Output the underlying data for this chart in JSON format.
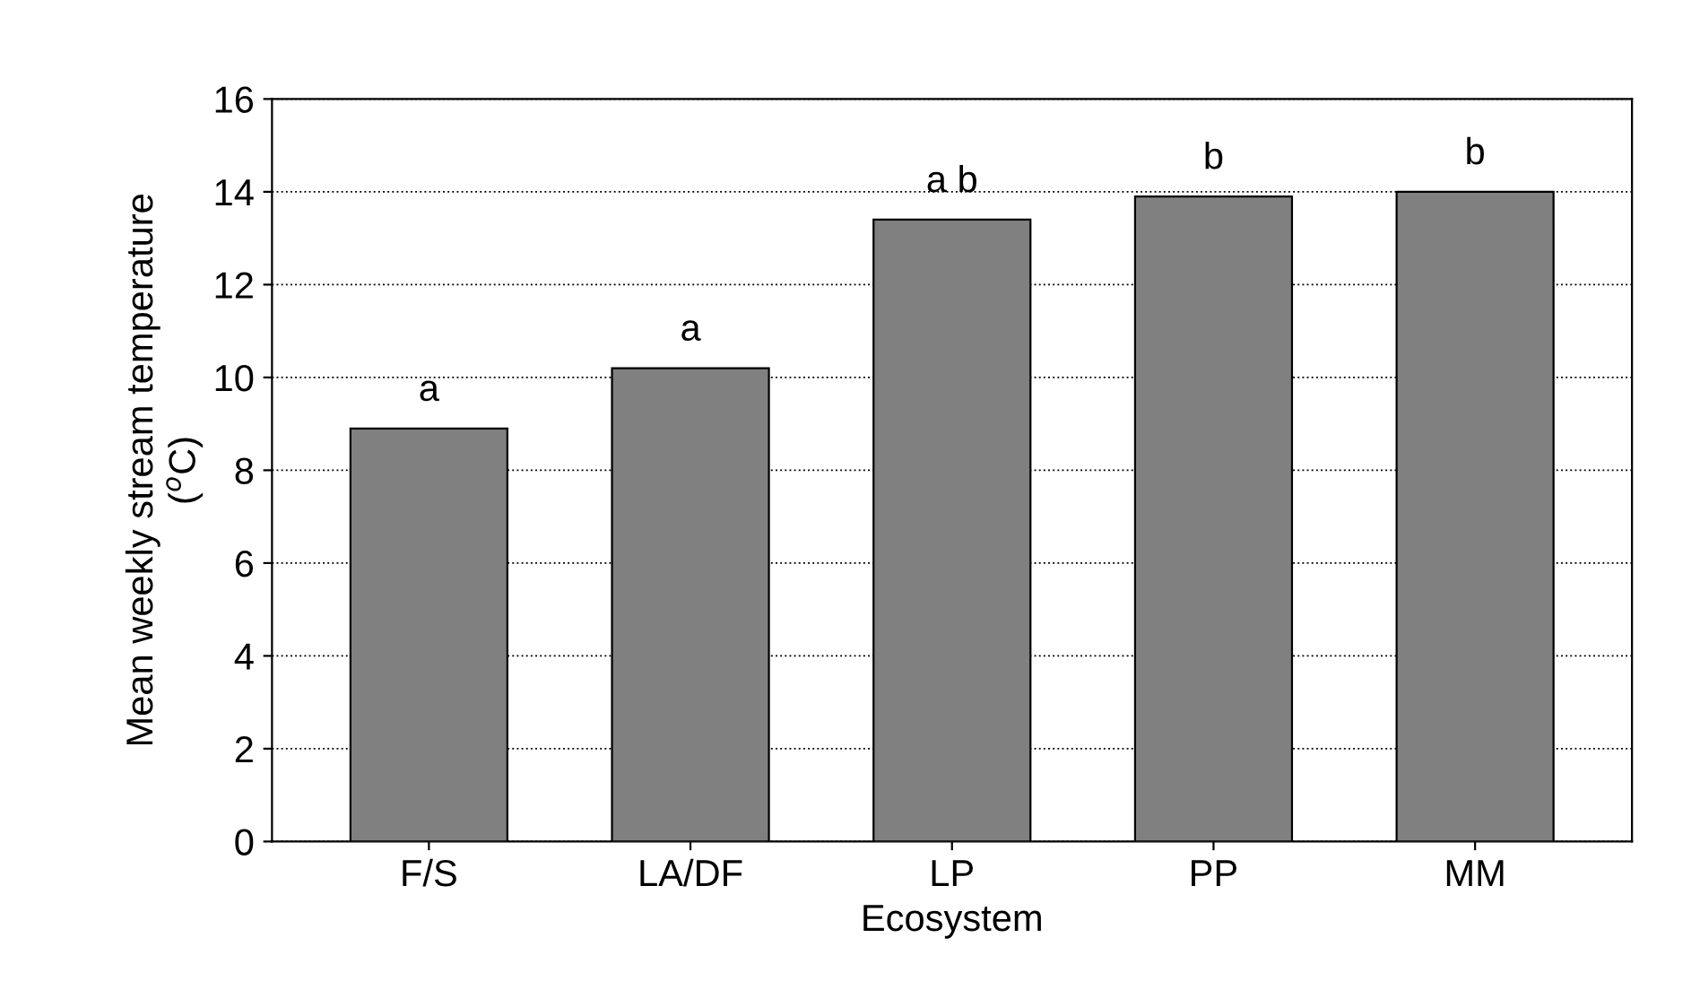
{
  "chart_data": {
    "type": "bar",
    "xlabel": "Ecosystem",
    "ylabel": "Mean weekly stream temperature\n($^{o}$C)",
    "categories": [
      "F/S",
      "LA/DF",
      "LP",
      "PP",
      "MM"
    ],
    "values": [
      8.9,
      10.2,
      13.4,
      13.9,
      14.0
    ],
    "color": "#808080",
    "ylim": [
      0,
      16
    ],
    "yticks": [
      0,
      2,
      4,
      6,
      8,
      10,
      12,
      14,
      16
    ],
    "grid": "y",
    "annotations": [
      {
        "text": "a",
        "x": "F/S",
        "y": 8.9
      },
      {
        "text": "a",
        "x": "LA/DF",
        "y": 10.2
      },
      {
        "text": "a b",
        "x": "LP",
        "y": 13.4
      },
      {
        "text": "b",
        "x": "PP",
        "y": 13.9
      },
      {
        "text": "b",
        "x": "MM",
        "y": 14.0
      }
    ]
  }
}
